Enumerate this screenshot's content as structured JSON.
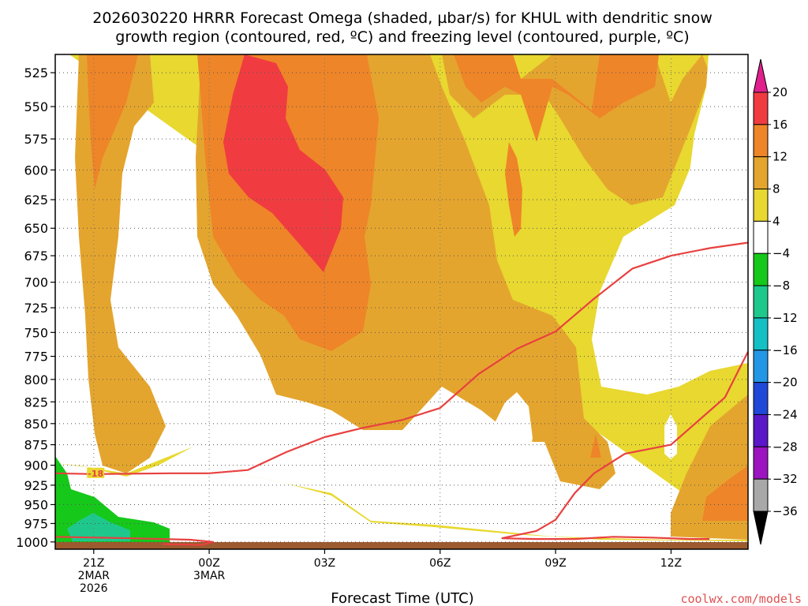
{
  "title": {
    "line1": "2026030220 HRRR Forecast Omega (shaded, µbar/s) for KHUL with dendritic snow",
    "line2": "growth region (contoured, red, ºC) and freezing level (contoured, purple, ºC)"
  },
  "xaxis_title": "Forecast Time (UTC)",
  "credit": "coolwx.com/models",
  "chart_data": {
    "type": "heatmap",
    "variable": "Omega",
    "units": "µbar/s",
    "y_ticks": [
      525,
      550,
      575,
      600,
      625,
      650,
      675,
      700,
      725,
      750,
      775,
      800,
      825,
      850,
      875,
      900,
      925,
      950,
      975,
      1000
    ],
    "x_ticks": [
      {
        "hour": 1,
        "lines": [
          "21Z",
          "2MAR",
          "2026"
        ]
      },
      {
        "hour": 4,
        "lines": [
          "00Z",
          "3MAR"
        ]
      },
      {
        "hour": 7,
        "lines": [
          "03Z"
        ]
      },
      {
        "hour": 10,
        "lines": [
          "06Z"
        ]
      },
      {
        "hour": 13,
        "lines": [
          "09Z"
        ]
      },
      {
        "hour": 16,
        "lines": [
          "12Z"
        ]
      }
    ],
    "x_range_hours": [
      0,
      18
    ],
    "y_range_hpa": [
      1010,
      512
    ],
    "colorbar": {
      "labels": [
        "20",
        "16",
        "12",
        "8",
        "4",
        "−4",
        "−8",
        "−12",
        "−16",
        "−20",
        "−24",
        "−28",
        "−32",
        "−36"
      ],
      "colors": [
        "#e0208c",
        "#f03c40",
        "#ee8528",
        "#e4a52e",
        "#e8d830",
        "#ffffff",
        "#16c81a",
        "#1ec88c",
        "#14c0c4",
        "#2496e6",
        "#2048d8",
        "#5a18c8",
        "#9c14c0",
        "#a8a8a8",
        "#000000"
      ]
    },
    "contours": [
      {
        "label": "-18",
        "color": "#e84040",
        "points": [
          [
            0.0,
            910
          ],
          [
            1.0,
            911
          ],
          [
            3.0,
            910
          ],
          [
            4.0,
            910
          ],
          [
            5.0,
            906
          ],
          [
            6.0,
            884
          ],
          [
            7.0,
            866
          ],
          [
            8.0,
            855
          ],
          [
            9.0,
            846
          ],
          [
            10.0,
            832
          ],
          [
            11.0,
            794
          ],
          [
            12.0,
            767
          ],
          [
            13.0,
            749
          ],
          [
            14.0,
            716
          ],
          [
            15.0,
            687
          ],
          [
            16.0,
            675
          ],
          [
            17.0,
            668
          ],
          [
            18.0,
            663
          ]
        ]
      },
      {
        "label": "",
        "color": "#e84040",
        "points": [
          [
            0.0,
            993
          ],
          [
            2.0,
            995
          ],
          [
            3.5,
            997
          ],
          [
            4.1,
            1000
          ],
          [
            3.8,
            1004
          ],
          [
            2.8,
            1003
          ]
        ]
      },
      {
        "label": "",
        "color": "#e84040",
        "points": [
          [
            11.6,
            995
          ],
          [
            12.5,
            985
          ],
          [
            13.0,
            970
          ],
          [
            13.5,
            935
          ],
          [
            14.0,
            910
          ],
          [
            14.8,
            886
          ],
          [
            16.0,
            875
          ],
          [
            16.5,
            855
          ],
          [
            17.4,
            820
          ],
          [
            18.0,
            770
          ]
        ]
      },
      {
        "label": "",
        "color": "#e84040",
        "points": [
          [
            11.6,
            995
          ],
          [
            12.5,
            996
          ],
          [
            13.5,
            996
          ],
          [
            14.5,
            993
          ],
          [
            15.5,
            994
          ],
          [
            16.5,
            996
          ],
          [
            17.0,
            996
          ]
        ]
      }
    ],
    "terrain": {
      "color": "#9c5a2e",
      "top_hpa": 1006
    }
  }
}
